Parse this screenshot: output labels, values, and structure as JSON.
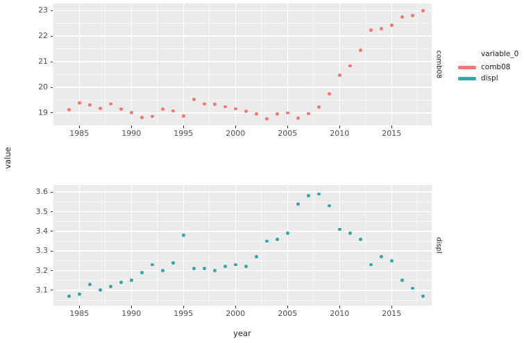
{
  "figure": {
    "background": "#ffffff",
    "panel_bg": "#ebebeb",
    "grid_color": "#ffffff",
    "tick_color": "#333333",
    "tick_label_color": "#4d4d4d",
    "x_axis_title": "year",
    "y_axis_title": "value"
  },
  "legend": {
    "title": "variable_0",
    "position": "right",
    "entries": [
      {
        "label": "comb08",
        "color": "#f4786f"
      },
      {
        "label": "displ",
        "color": "#36a7a8"
      }
    ]
  },
  "chart_data": [
    {
      "type": "scatter",
      "facet": "comb08",
      "series_name": "comb08",
      "color": "#f4786f",
      "xlabel": "year",
      "ylabel": "value",
      "grid": true,
      "x_ticks": [
        1985,
        1990,
        1995,
        2000,
        2005,
        2010,
        2015
      ],
      "y_ticks": [
        19,
        20,
        21,
        22,
        23
      ],
      "xlim": [
        1982.45,
        2018.85
      ],
      "ylim": [
        18.51,
        23.28
      ],
      "x": [
        1984,
        1985,
        1986,
        1987,
        1988,
        1989,
        1990,
        1991,
        1992,
        1993,
        1994,
        1995,
        1996,
        1997,
        1998,
        1999,
        2000,
        2001,
        2002,
        2003,
        2004,
        2005,
        2006,
        2007,
        2008,
        2009,
        2010,
        2011,
        2012,
        2013,
        2014,
        2015,
        2016,
        2017,
        2018
      ],
      "y": [
        19.11,
        19.38,
        19.31,
        19.17,
        19.35,
        19.14,
        19.02,
        18.82,
        18.86,
        19.14,
        19.08,
        18.87,
        19.53,
        19.35,
        19.33,
        19.24,
        19.16,
        19.06,
        18.95,
        18.77,
        18.96,
        19.0,
        18.79,
        18.97,
        19.22,
        19.74,
        20.48,
        20.84,
        21.45,
        22.23,
        22.3,
        22.43,
        22.75,
        22.8,
        23.0
      ]
    },
    {
      "type": "scatter",
      "facet": "displ",
      "series_name": "displ",
      "color": "#36a7a8",
      "xlabel": "year",
      "ylabel": "value",
      "grid": true,
      "x_ticks": [
        1985,
        1990,
        1995,
        2000,
        2005,
        2010,
        2015
      ],
      "y_ticks": [
        3.1,
        3.2,
        3.3,
        3.4,
        3.5,
        3.6
      ],
      "xlim": [
        1982.45,
        2018.85
      ],
      "ylim": [
        3.022,
        3.636
      ],
      "x": [
        1984,
        1985,
        1986,
        1987,
        1988,
        1989,
        1990,
        1991,
        1992,
        1993,
        1994,
        1995,
        1996,
        1997,
        1998,
        1999,
        2000,
        2001,
        2002,
        2003,
        2004,
        2005,
        2006,
        2007,
        2008,
        2009,
        2010,
        2011,
        2012,
        2013,
        2014,
        2015,
        2016,
        2017,
        2018
      ],
      "y": [
        3.07,
        3.08,
        3.13,
        3.1,
        3.12,
        3.14,
        3.15,
        3.19,
        3.23,
        3.2,
        3.24,
        3.38,
        3.21,
        3.21,
        3.2,
        3.22,
        3.23,
        3.22,
        3.27,
        3.35,
        3.36,
        3.39,
        3.54,
        3.58,
        3.59,
        3.53,
        3.41,
        3.39,
        3.36,
        3.23,
        3.27,
        3.25,
        3.15,
        3.11,
        3.07
      ]
    }
  ]
}
